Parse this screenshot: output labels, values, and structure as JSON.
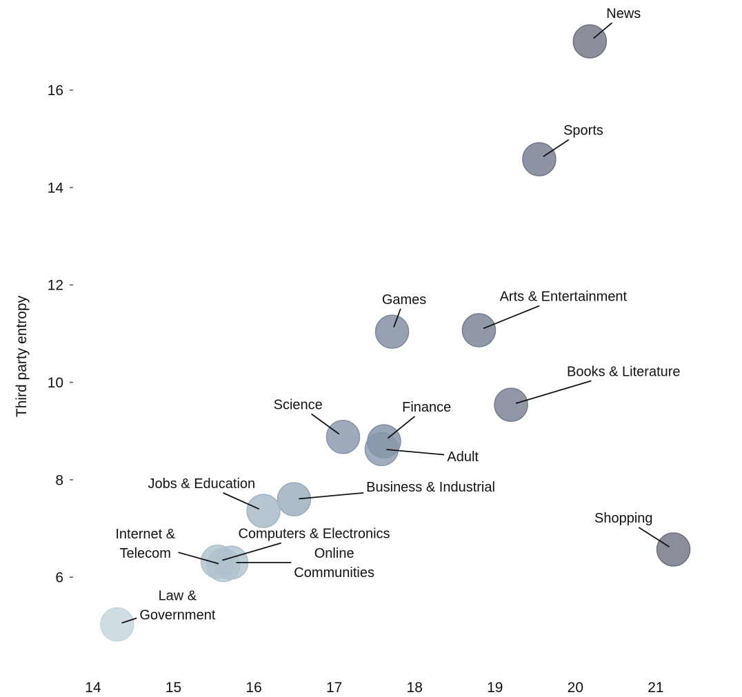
{
  "chart_data": {
    "type": "scatter",
    "title": "",
    "xlabel": "",
    "ylabel": "Third party entropy",
    "xlim": [
      13.7,
      21.85
    ],
    "ylim": [
      4.05,
      17.85
    ],
    "xticks": [
      14,
      15,
      16,
      17,
      18,
      19,
      20,
      21
    ],
    "yticks": [
      6,
      8,
      10,
      12,
      14,
      16
    ],
    "grid": false,
    "points": [
      {
        "label": "News",
        "x": 20.18,
        "y": 17.0,
        "label_x": 20.6,
        "label_y": 17.58,
        "color": "#6b6f7f"
      },
      {
        "label": "Sports",
        "x": 19.55,
        "y": 14.58,
        "label_x": 20.1,
        "label_y": 15.18,
        "color": "#6e7689"
      },
      {
        "label": "Games",
        "x": 17.72,
        "y": 11.04,
        "label_x": 17.87,
        "label_y": 11.71,
        "color": "#7b879c"
      },
      {
        "label": "Arts & Entertainment",
        "x": 18.8,
        "y": 11.07,
        "label_x": 19.85,
        "label_y": 11.77,
        "color": "#727c90"
      },
      {
        "label": "Books & Literature",
        "x": 19.2,
        "y": 9.54,
        "label_x": 20.6,
        "label_y": 10.23,
        "color": "#727a8d"
      },
      {
        "label": "Science",
        "x": 17.11,
        "y": 8.88,
        "label_x": 16.55,
        "label_y": 9.55,
        "color": "#8494a9"
      },
      {
        "label": "Finance",
        "x": 17.62,
        "y": 8.79,
        "label_x": 18.15,
        "label_y": 9.5,
        "color": "#7e8ca3"
      },
      {
        "label": "Adult",
        "x": 17.59,
        "y": 8.63,
        "label_x": 18.6,
        "label_y": 8.48,
        "color": "#8796ab"
      },
      {
        "label": "Business & Industrial",
        "x": 16.5,
        "y": 7.6,
        "label_x": 18.2,
        "label_y": 7.86,
        "color": "#97a8ba"
      },
      {
        "label": "Jobs & Education",
        "x": 16.12,
        "y": 7.36,
        "label_x": 15.35,
        "label_y": 7.93,
        "color": "#a3b5c4"
      },
      {
        "label": "Computers & Electronics",
        "x": 15.55,
        "y": 6.32,
        "label_x": 16.75,
        "label_y": 6.9,
        "color": "#adc0cb"
      },
      {
        "label": "Internet & Telecom",
        "x": 15.62,
        "y": 6.25,
        "label_x": 14.65,
        "label_y": 6.7,
        "label_lines": [
          "Internet &",
          "Telecom"
        ],
        "color": "#b1c3ce"
      },
      {
        "label": "Online Communities",
        "x": 15.72,
        "y": 6.3,
        "label_x": 17.0,
        "label_y": 6.3,
        "label_lines": [
          "Online",
          "Communities"
        ],
        "color": "#aec1cc"
      },
      {
        "label": "Law & Government",
        "x": 14.3,
        "y": 5.03,
        "label_x": 15.05,
        "label_y": 5.43,
        "label_lines": [
          "Law &",
          "Government"
        ],
        "color": "#c3d4da"
      },
      {
        "label": "Shopping",
        "x": 21.22,
        "y": 6.57,
        "label_x": 20.6,
        "label_y": 7.22,
        "color": "#6a6e7e"
      }
    ]
  }
}
